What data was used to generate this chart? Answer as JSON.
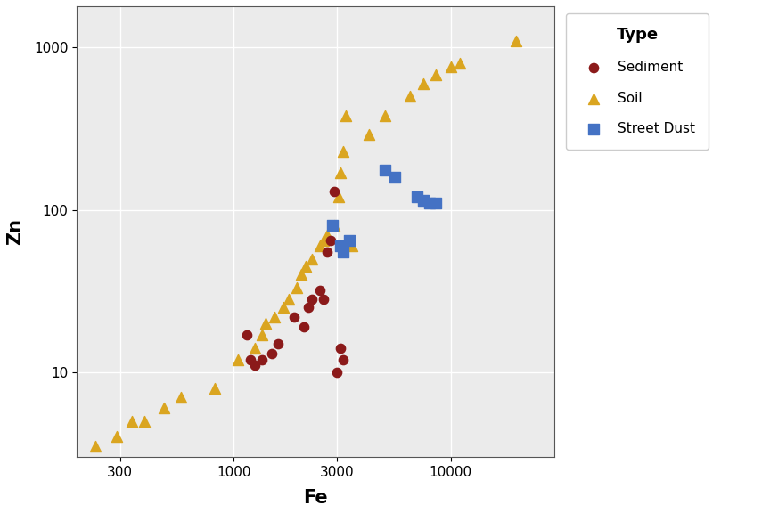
{
  "title": "",
  "xlabel": "Fe",
  "ylabel": "Zn",
  "background_color": "#EBEBEB",
  "grid_color": "white",
  "legend_title": "Type",
  "sediment": {
    "Fe": [
      1150,
      1200,
      1250,
      1350,
      1500,
      1600,
      1900,
      2100,
      2200,
      2300,
      2500,
      2600,
      2700,
      2800,
      2900,
      3000,
      3100,
      3200
    ],
    "Zn": [
      17,
      12,
      11,
      12,
      13,
      15,
      22,
      19,
      25,
      28,
      32,
      28,
      55,
      65,
      130,
      10,
      14,
      12
    ],
    "color": "#8B1A1A",
    "marker": "o",
    "label": "Sediment",
    "size": 55
  },
  "soil": {
    "Fe": [
      230,
      290,
      340,
      390,
      480,
      570,
      820,
      1050,
      1250,
      1350,
      1400,
      1550,
      1700,
      1800,
      1950,
      2050,
      2150,
      2300,
      2500,
      2600,
      2700,
      2900,
      3050,
      3100,
      3200,
      3300,
      3500,
      4200,
      5000,
      6500,
      7500,
      8500,
      10000,
      11000,
      20000
    ],
    "Zn": [
      3.5,
      4,
      5,
      5,
      6,
      7,
      8,
      12,
      14,
      17,
      20,
      22,
      25,
      28,
      33,
      40,
      45,
      50,
      60,
      65,
      70,
      80,
      120,
      170,
      230,
      380,
      60,
      290,
      380,
      500,
      600,
      680,
      760,
      800,
      1100
    ],
    "color": "#DAA520",
    "marker": "^",
    "label": "Soil",
    "size": 75
  },
  "street_dust": {
    "Fe": [
      2850,
      3100,
      3200,
      3400,
      5000,
      5500,
      7000,
      7500,
      8000,
      8500
    ],
    "Zn": [
      80,
      60,
      55,
      65,
      175,
      160,
      120,
      115,
      110,
      110
    ],
    "color": "#4472C4",
    "marker": "s",
    "label": "Street Dust",
    "size": 70
  },
  "xlim_log": [
    190,
    30000
  ],
  "ylim_log": [
    3.0,
    1800
  ],
  "xticks": [
    300,
    1000,
    3000,
    10000
  ],
  "yticks": [
    10,
    100,
    1000
  ]
}
